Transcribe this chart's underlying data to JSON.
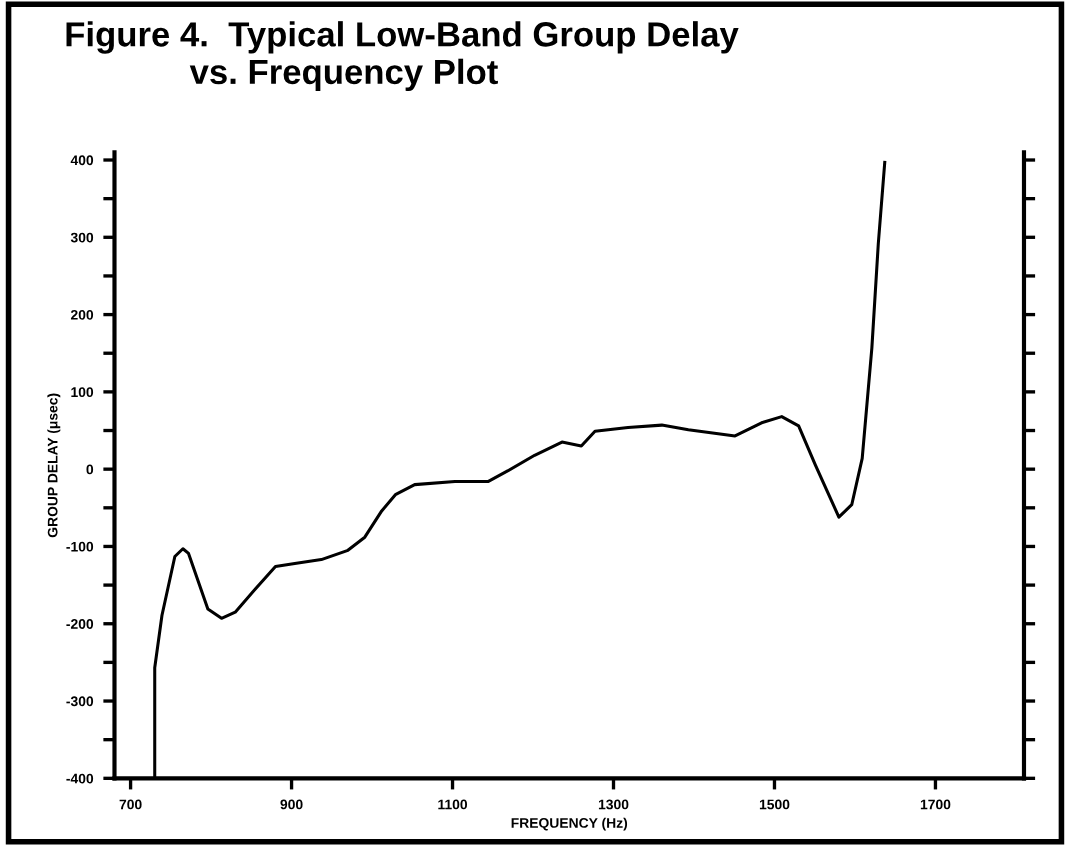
{
  "chart_data": {
    "type": "line",
    "title": "Figure 4.  Typical Low-Band Group Delay\n             vs. Frequency Plot",
    "xlabel": "FREQUENCY (Hz)",
    "ylabel": "GROUP DELAY (μsec)",
    "series": [
      {
        "color": "#000000",
        "x": [
          730,
          730,
          739,
          755,
          765,
          772,
          796,
          813,
          830,
          855,
          880,
          904,
          937,
          970,
          991,
          1012,
          1029,
          1053,
          1103,
          1144,
          1169,
          1202,
          1236,
          1260,
          1277,
          1318,
          1360,
          1393,
          1451,
          1484,
          1509,
          1530,
          1551,
          1580,
          1596,
          1609,
          1621,
          1629,
          1637
        ],
        "values": [
          -400,
          -257,
          -189,
          -113,
          -103,
          -109,
          -181,
          -193,
          -185,
          -155,
          -126,
          -122,
          -117,
          -105,
          -88,
          -54,
          -33,
          -20,
          -16,
          -16,
          -2,
          18,
          35,
          30,
          49,
          54,
          57,
          51,
          43,
          60,
          68,
          56,
          5,
          -62,
          -46,
          14,
          157,
          292,
          397
        ]
      }
    ],
    "xlim": [
      680,
      1810
    ],
    "ylim": [
      -400,
      410
    ],
    "xticks": [
      700,
      900,
      1100,
      1300,
      1500,
      1700
    ],
    "yticks": [
      -400,
      {
        "value": -350,
        "label": null
      },
      -300,
      {
        "value": -250,
        "label": null
      },
      -200,
      {
        "value": -150,
        "label": null
      },
      -100,
      {
        "value": -50,
        "label": null
      },
      0,
      {
        "value": 50,
        "label": null
      },
      100,
      {
        "value": 150,
        "label": null
      },
      200,
      {
        "value": 250,
        "label": null
      },
      300,
      {
        "value": 350,
        "label": null
      },
      400
    ],
    "grid": false,
    "legend": false,
    "marker": "none",
    "line_style": "solid"
  }
}
